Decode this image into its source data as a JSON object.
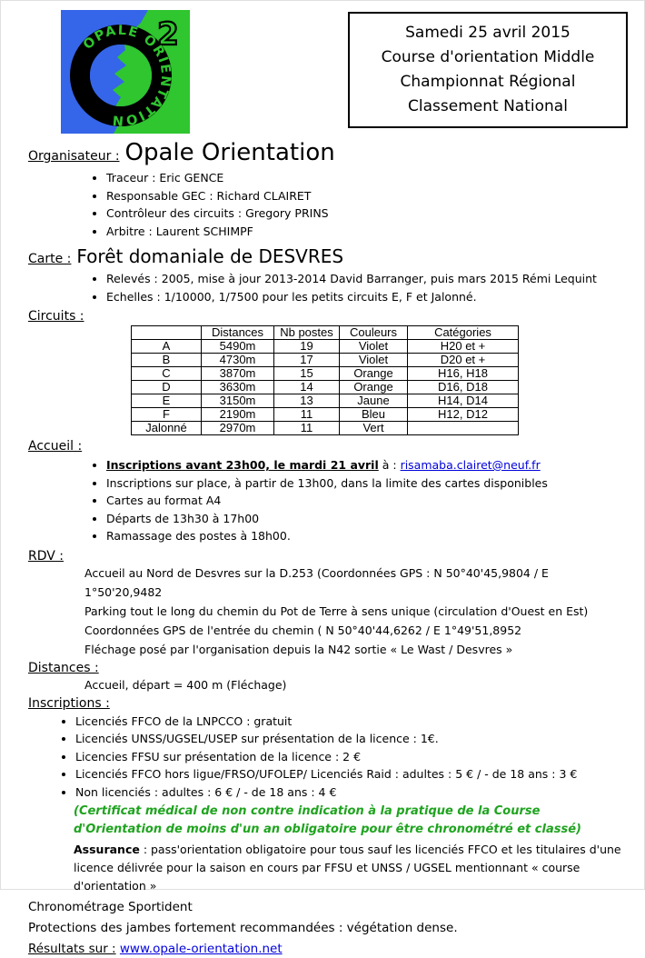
{
  "banner": {
    "lines": [
      "Samedi 25 avril 2015",
      "Course d'orientation Middle",
      "Championnat Régional",
      "Classement National"
    ]
  },
  "logo": {
    "ring_text": "OPALE ORIENTATION",
    "badge": "2",
    "colors": {
      "blue": "#3565e8",
      "green": "#2fc62f",
      "ring": "#000000"
    }
  },
  "organisateur": {
    "label": "Organisateur :",
    "name": "Opale Orientation",
    "bullets": [
      "Traceur : Eric GENCE",
      "Responsable GEC : Richard CLAIRET",
      "Contrôleur des circuits : Gregory PRINS",
      "Arbitre : Laurent SCHIMPF"
    ]
  },
  "carte": {
    "label": "Carte :",
    "name": "Forêt domaniale de DESVRES",
    "bullets": [
      "Relevés : 2005, mise à jour 2013-2014 David Barranger, puis mars 2015 Rémi Lequint",
      "Echelles : 1/10000, 1/7500 pour les petits circuits E, F et Jalonné."
    ]
  },
  "circuits": {
    "label": "Circuits :",
    "table": {
      "headers": [
        "",
        "Distances",
        "Nb postes",
        "Couleurs",
        "Catégories"
      ],
      "rows": [
        [
          "A",
          "5490m",
          "19",
          "Violet",
          "H20 et +"
        ],
        [
          "B",
          "4730m",
          "17",
          "Violet",
          "D20 et +"
        ],
        [
          "C",
          "3870m",
          "15",
          "Orange",
          "H16, H18"
        ],
        [
          "D",
          "3630m",
          "14",
          "Orange",
          "D16, D18"
        ],
        [
          "E",
          "3150m",
          "13",
          "Jaune",
          "H14, D14"
        ],
        [
          "F",
          "2190m",
          "11",
          "Bleu",
          "H12, D12"
        ],
        [
          "Jalonné",
          "2970m",
          "11",
          "Vert",
          ""
        ]
      ]
    }
  },
  "accueil": {
    "label": "Accueil :",
    "bullet1_bold": "Inscriptions avant 23h00, le mardi 21 avril",
    "bullet1_mid": " à : ",
    "bullet1_link": "risamaba.clairet@neuf.fr",
    "bullets": [
      "Inscriptions sur place, à partir de 13h00, dans la limite des cartes disponibles",
      "Cartes au format A4",
      "Départs de 13h30 à 17h00",
      "Ramassage des postes à 18h00."
    ]
  },
  "rdv": {
    "label": "RDV :",
    "lines": [
      "Accueil au Nord de Desvres sur la D.253 (Coordonnées GPS :  N 50°40'45,9804 / E 1°50'20,9482",
      "Parking tout le long du chemin du Pot de Terre à sens unique (circulation d'Ouest en Est)",
      "Coordonnées GPS de l'entrée du chemin ( N 50°40'44,6262 / E 1°49'51,8952",
      "Fléchage posé par l'organisation depuis la N42 sortie « Le Wast / Desvres »"
    ]
  },
  "distances": {
    "label": "Distances :",
    "line": "Accueil, départ = 400 m (Fléchage)"
  },
  "inscriptions": {
    "label": "Inscriptions :",
    "bullets": [
      "Licenciés FFCO de la LNPCCO : gratuit",
      "Licenciés UNSS/UGSEL/USEP sur présentation de la licence : 1€.",
      "Licencies FFSU sur présentation de la licence : 2 €",
      "Licenciés FFCO hors ligue/FRSO/UFOLEP/ Licenciés Raid : adultes : 5 € / - de 18 ans : 3 €",
      "Non licenciés : adultes : 6 € / - de 18 ans : 4 €"
    ],
    "certificat": "(Certificat médical de non contre indication à la pratique de la Course d'Orientation de moins d'un an obligatoire pour être chronométré et classé)",
    "assurance_bold": "Assurance",
    "assurance_rest": " : pass'orientation obligatoire pour tous sauf les licenciés FFCO et les titulaires d'une licence délivrée pour la saison en cours par FFSU et UNSS / UGSEL mentionnant « course d'orientation »"
  },
  "footer": {
    "chrono": "Chronométrage Sportident",
    "protections": "Protections des jambes fortement recommandées : végétation dense.",
    "resultats_label": "Résultats sur :",
    "resultats_link": "www.opale-orientation.net"
  }
}
